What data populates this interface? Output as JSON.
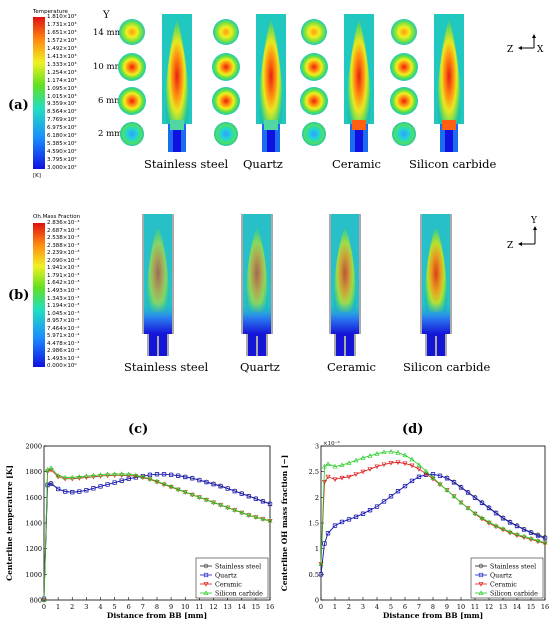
{
  "panel_a": {
    "label": "(a)",
    "colorbar_title": "Temperature",
    "colorbar_unit": "[K]",
    "colorbar_ticks": [
      "1.810×10³",
      "1.731×10³",
      "1.651×10³",
      "1.572×10³",
      "1.492×10³",
      "1.413×10³",
      "1.333×10³",
      "1.254×10³",
      "1.174×10³",
      "1.095×10³",
      "1.015×10³",
      "9.359×10²",
      "8.564×10²",
      "7.769×10²",
      "6.975×10²",
      "6.180×10²",
      "5.385×10²",
      "4.590×10²",
      "3.795×10²",
      "3.000×10²"
    ],
    "y_axis_label": "Y",
    "heights": [
      "14 mm",
      "10 mm",
      "6 mm",
      "2 mm"
    ],
    "materials": [
      "Stainless steel",
      "Quartz",
      "Ceramic",
      "Silicon carbide"
    ],
    "axis_z": "Z",
    "axis_x": "X"
  },
  "panel_b": {
    "label": "(b)",
    "colorbar_title": "Oh.Mass Fraction",
    "colorbar_ticks": [
      "2.836×10⁻³",
      "2.687×10⁻³",
      "2.538×10⁻³",
      "2.388×10⁻³",
      "2.239×10⁻³",
      "2.090×10⁻³",
      "1.941×10⁻³",
      "1.791×10⁻³",
      "1.642×10⁻³",
      "1.493×10⁻³",
      "1.343×10⁻³",
      "1.194×10⁻³",
      "1.045×10⁻³",
      "8.957×10⁻⁴",
      "7.464×10⁻⁴",
      "5.971×10⁻⁴",
      "4.478×10⁻⁴",
      "2.986×10⁻⁴",
      "1.493×10⁻⁴",
      "0.000×10⁰"
    ],
    "materials": [
      "Stainless steel",
      "Quartz",
      "Ceramic",
      "Silicon carbide"
    ],
    "axis_y": "Y",
    "axis_z": "Z"
  },
  "panel_c": {
    "label": "(c)"
  },
  "panel_d": {
    "label": "(d)",
    "exponent": "×10⁻³"
  },
  "colors": {
    "stainless": "#222222",
    "quartz": "#1a1acc",
    "ceramic": "#dd1111",
    "silicon": "#22cc22"
  },
  "chart_data": [
    {
      "type": "line",
      "xlabel": "Distance from BB [mm]",
      "ylabel": "Centerline temperature [K]",
      "xlim": [
        0,
        16
      ],
      "ylim": [
        800,
        2000
      ],
      "xticks": [
        "0",
        "1",
        "2",
        "3",
        "4",
        "5",
        "6",
        "7",
        "8",
        "9",
        "10",
        "11",
        "12",
        "13",
        "14",
        "15",
        "16"
      ],
      "yticks": [
        "800",
        "1000",
        "1200",
        "1400",
        "1600",
        "1800",
        "2000"
      ],
      "x": [
        0,
        0.25,
        0.5,
        1,
        1.5,
        2,
        2.5,
        3,
        3.5,
        4,
        4.5,
        5,
        5.5,
        6,
        6.5,
        7,
        7.5,
        8,
        8.5,
        9,
        9.5,
        10,
        10.5,
        11,
        11.5,
        12,
        12.5,
        13,
        13.5,
        14,
        14.5,
        15,
        15.5,
        16
      ],
      "series": [
        {
          "name": "Stainless steel",
          "values": [
            800,
            1700,
            1710,
            1665,
            1645,
            1640,
            1645,
            1655,
            1670,
            1685,
            1700,
            1715,
            1730,
            1745,
            1755,
            1765,
            1775,
            1780,
            1780,
            1775,
            1770,
            1760,
            1750,
            1735,
            1720,
            1705,
            1690,
            1670,
            1650,
            1630,
            1610,
            1590,
            1570,
            1550
          ]
        },
        {
          "name": "Quartz",
          "values": [
            810,
            1695,
            1705,
            1665,
            1645,
            1640,
            1645,
            1655,
            1670,
            1685,
            1700,
            1715,
            1730,
            1745,
            1755,
            1765,
            1775,
            1780,
            1780,
            1775,
            1768,
            1758,
            1748,
            1734,
            1718,
            1702,
            1686,
            1668,
            1648,
            1628,
            1608,
            1588,
            1568,
            1548
          ]
        },
        {
          "name": "Ceramic",
          "values": [
            800,
            1800,
            1815,
            1760,
            1745,
            1745,
            1750,
            1755,
            1760,
            1765,
            1770,
            1772,
            1772,
            1770,
            1765,
            1755,
            1740,
            1720,
            1700,
            1680,
            1660,
            1640,
            1620,
            1600,
            1580,
            1560,
            1540,
            1520,
            1500,
            1480,
            1460,
            1445,
            1430,
            1415
          ]
        },
        {
          "name": "Silicon carbide",
          "values": [
            800,
            1815,
            1830,
            1770,
            1755,
            1755,
            1760,
            1765,
            1770,
            1775,
            1780,
            1782,
            1782,
            1780,
            1772,
            1760,
            1745,
            1725,
            1705,
            1685,
            1663,
            1643,
            1622,
            1602,
            1582,
            1562,
            1542,
            1522,
            1502,
            1482,
            1462,
            1447,
            1432,
            1418
          ]
        }
      ],
      "legend": "bottom-right",
      "grid": false
    },
    {
      "type": "line",
      "xlabel": "Distance from BB [mm]",
      "ylabel": "Centerline OH mass fraction [−]",
      "xlim": [
        0,
        16
      ],
      "ylim": [
        0,
        3
      ],
      "xticks": [
        "0",
        "1",
        "2",
        "3",
        "4",
        "5",
        "6",
        "7",
        "8",
        "9",
        "10",
        "11",
        "12",
        "13",
        "14",
        "15",
        "16"
      ],
      "yticks": [
        "0",
        "0.5",
        "1",
        "1.5",
        "2",
        "2.5",
        "3"
      ],
      "x": [
        0,
        0.25,
        0.5,
        1,
        1.5,
        2,
        2.5,
        3,
        3.5,
        4,
        4.5,
        5,
        5.5,
        6,
        6.5,
        7,
        7.5,
        8,
        8.5,
        9,
        9.5,
        10,
        10.5,
        11,
        11.5,
        12,
        12.5,
        13,
        13.5,
        14,
        14.5,
        15,
        15.5,
        16
      ],
      "series": [
        {
          "name": "Stainless steel",
          "values": [
            0.5,
            1.1,
            1.3,
            1.45,
            1.52,
            1.57,
            1.62,
            1.68,
            1.75,
            1.82,
            1.92,
            2.02,
            2.12,
            2.22,
            2.32,
            2.4,
            2.44,
            2.45,
            2.42,
            2.38,
            2.3,
            2.2,
            2.1,
            2.0,
            1.9,
            1.8,
            1.7,
            1.6,
            1.52,
            1.45,
            1.38,
            1.32,
            1.27,
            1.22
          ]
        },
        {
          "name": "Quartz",
          "values": [
            0.5,
            1.1,
            1.3,
            1.45,
            1.52,
            1.57,
            1.62,
            1.68,
            1.75,
            1.82,
            1.92,
            2.02,
            2.12,
            2.22,
            2.32,
            2.4,
            2.44,
            2.45,
            2.42,
            2.37,
            2.29,
            2.19,
            2.09,
            1.99,
            1.89,
            1.79,
            1.69,
            1.59,
            1.51,
            1.44,
            1.37,
            1.31,
            1.25,
            1.2
          ]
        },
        {
          "name": "Ceramic",
          "values": [
            0.7,
            2.3,
            2.4,
            2.35,
            2.38,
            2.4,
            2.45,
            2.5,
            2.55,
            2.6,
            2.64,
            2.67,
            2.68,
            2.66,
            2.62,
            2.55,
            2.46,
            2.36,
            2.25,
            2.14,
            2.02,
            1.9,
            1.79,
            1.68,
            1.58,
            1.5,
            1.43,
            1.37,
            1.31,
            1.26,
            1.22,
            1.18,
            1.14,
            1.1
          ]
        },
        {
          "name": "Silicon carbide",
          "values": [
            0.7,
            2.6,
            2.65,
            2.6,
            2.63,
            2.67,
            2.72,
            2.77,
            2.81,
            2.85,
            2.88,
            2.89,
            2.87,
            2.82,
            2.74,
            2.63,
            2.51,
            2.38,
            2.26,
            2.14,
            2.02,
            1.9,
            1.79,
            1.69,
            1.6,
            1.52,
            1.45,
            1.39,
            1.33,
            1.28,
            1.24,
            1.2,
            1.16,
            1.12
          ]
        }
      ],
      "legend": "bottom-right",
      "grid": false
    }
  ]
}
